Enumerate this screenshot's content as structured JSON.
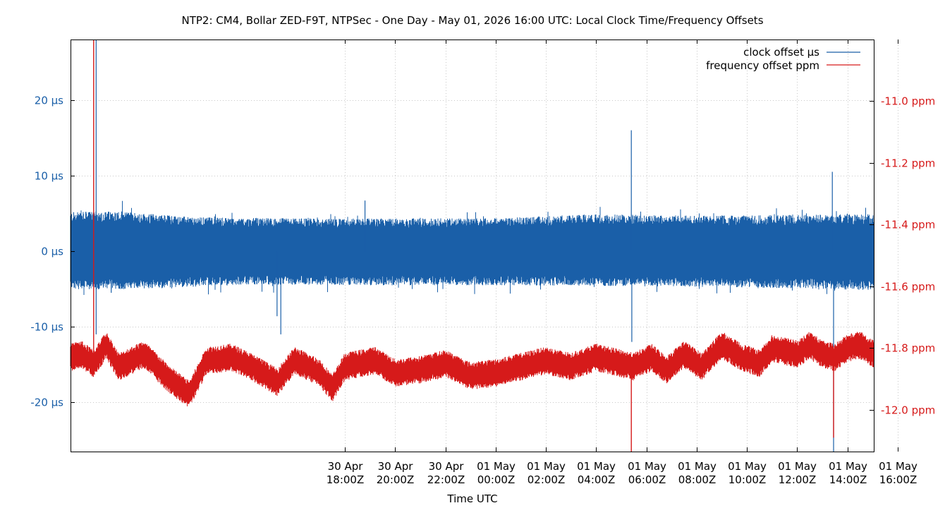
{
  "chart_data": {
    "type": "line",
    "title": "NTP2: CM4, Bollar ZED-F9T, NTPSec - One Day - May 01, 2026 16:00 UTC: Local Clock Time/Frequency Offsets",
    "xlabel": "Time UTC",
    "x_range_hours": [
      -16.92,
      15.05
    ],
    "x_reference": "2026-05-01 00:00Z",
    "y_left": {
      "unit": "µs",
      "range": [
        -26.5,
        28
      ],
      "ticks": [
        -20,
        -10,
        0,
        10,
        20
      ],
      "tick_labels": [
        "-20 µs",
        "-10 µs",
        "0 µs",
        "10 µs",
        "20 µs"
      ]
    },
    "y_right": {
      "unit": "ppm",
      "range": [
        -12.135,
        -10.8
      ],
      "ticks": [
        -12.0,
        -11.8,
        -11.6,
        -11.4,
        -11.2,
        -11.0
      ],
      "tick_labels": [
        "-12.0 ppm",
        "-11.8 ppm",
        "-11.6 ppm",
        "-11.4 ppm",
        "-11.2 ppm",
        "-11.0 ppm"
      ]
    },
    "x_ticks": [
      {
        "hours": -6,
        "date": "30 Apr",
        "time": "18:00Z"
      },
      {
        "hours": -4,
        "date": "30 Apr",
        "time": "20:00Z"
      },
      {
        "hours": -2,
        "date": "30 Apr",
        "time": "22:00Z"
      },
      {
        "hours": 0,
        "date": "01 May",
        "time": "00:00Z"
      },
      {
        "hours": 2,
        "date": "01 May",
        "time": "02:00Z"
      },
      {
        "hours": 4,
        "date": "01 May",
        "time": "04:00Z"
      },
      {
        "hours": 6,
        "date": "01 May",
        "time": "06:00Z"
      },
      {
        "hours": 8,
        "date": "01 May",
        "time": "08:00Z"
      },
      {
        "hours": 10,
        "date": "01 May",
        "time": "10:00Z"
      },
      {
        "hours": 12,
        "date": "01 May",
        "time": "12:00Z"
      },
      {
        "hours": 14,
        "date": "01 May",
        "time": "14:00Z"
      },
      {
        "hours": 16,
        "date": "01 May",
        "time": "16:00Z"
      }
    ],
    "grid": true,
    "legend_position": "top-right",
    "series": [
      {
        "name": "clock offset µs",
        "axis": "left",
        "color": "#1a5fa8",
        "band_upper": [
          [
            -16.92,
            5.2
          ],
          [
            -15.0,
            5.3
          ],
          [
            -12.0,
            4.5
          ],
          [
            -10.0,
            4.4
          ],
          [
            -6.0,
            4.3
          ],
          [
            0,
            4.4
          ],
          [
            4.0,
            4.9
          ],
          [
            8.0,
            4.7
          ],
          [
            12.0,
            4.8
          ],
          [
            15.05,
            4.9
          ]
        ],
        "band_lower": [
          [
            -16.92,
            -5.0
          ],
          [
            -15.0,
            -5.1
          ],
          [
            -12.0,
            -4.7
          ],
          [
            -10.0,
            -4.4
          ],
          [
            -6.0,
            -4.5
          ],
          [
            0,
            -4.5
          ],
          [
            4.0,
            -4.6
          ],
          [
            8.0,
            -4.7
          ],
          [
            12.0,
            -4.9
          ],
          [
            15.05,
            -5.2
          ]
        ],
        "spikes": [
          [
            -15.9,
            28
          ],
          [
            -15.9,
            -11
          ],
          [
            -15.3,
            -5.5
          ],
          [
            -8.7,
            -8.6
          ],
          [
            -8.55,
            -11
          ],
          [
            -5.2,
            6.7
          ],
          [
            5.4,
            16
          ],
          [
            5.42,
            -12
          ],
          [
            13.4,
            10.5
          ],
          [
            13.45,
            -26.5
          ]
        ]
      },
      {
        "name": "frequency offset ppm",
        "axis": "right",
        "color": "#d61a1a",
        "center": [
          [
            -16.92,
            -11.83
          ],
          [
            -16.5,
            -11.82
          ],
          [
            -16.0,
            -11.85
          ],
          [
            -15.5,
            -11.79
          ],
          [
            -15.0,
            -11.86
          ],
          [
            -14.0,
            -11.82
          ],
          [
            -13.0,
            -11.9
          ],
          [
            -12.2,
            -11.95
          ],
          [
            -11.5,
            -11.84
          ],
          [
            -10.5,
            -11.83
          ],
          [
            -9.5,
            -11.87
          ],
          [
            -8.7,
            -11.91
          ],
          [
            -8.0,
            -11.84
          ],
          [
            -7.0,
            -11.88
          ],
          [
            -6.5,
            -11.93
          ],
          [
            -6.0,
            -11.86
          ],
          [
            -4.8,
            -11.84
          ],
          [
            -4.0,
            -11.88
          ],
          [
            -3.0,
            -11.87
          ],
          [
            -2.0,
            -11.85
          ],
          [
            -1.0,
            -11.89
          ],
          [
            0.0,
            -11.88
          ],
          [
            1.0,
            -11.86
          ],
          [
            2.0,
            -11.84
          ],
          [
            3.0,
            -11.86
          ],
          [
            4.0,
            -11.83
          ],
          [
            4.5,
            -11.84
          ],
          [
            5.0,
            -11.85
          ],
          [
            5.5,
            -11.86
          ],
          [
            6.2,
            -11.83
          ],
          [
            6.8,
            -11.87
          ],
          [
            7.5,
            -11.82
          ],
          [
            8.2,
            -11.86
          ],
          [
            9.0,
            -11.79
          ],
          [
            9.8,
            -11.83
          ],
          [
            10.5,
            -11.85
          ],
          [
            11.0,
            -11.8
          ],
          [
            12.0,
            -11.82
          ],
          [
            12.5,
            -11.79
          ],
          [
            13.0,
            -11.82
          ],
          [
            13.5,
            -11.83
          ],
          [
            14.0,
            -11.8
          ],
          [
            14.5,
            -11.79
          ],
          [
            15.05,
            -11.82
          ]
        ],
        "band_half_width_ppm": 0.045,
        "spikes": [
          [
            -16.0,
            -10.8
          ],
          [
            -16.0,
            -11.85
          ],
          [
            5.4,
            -12.135
          ],
          [
            13.45,
            -12.09
          ]
        ]
      }
    ]
  }
}
